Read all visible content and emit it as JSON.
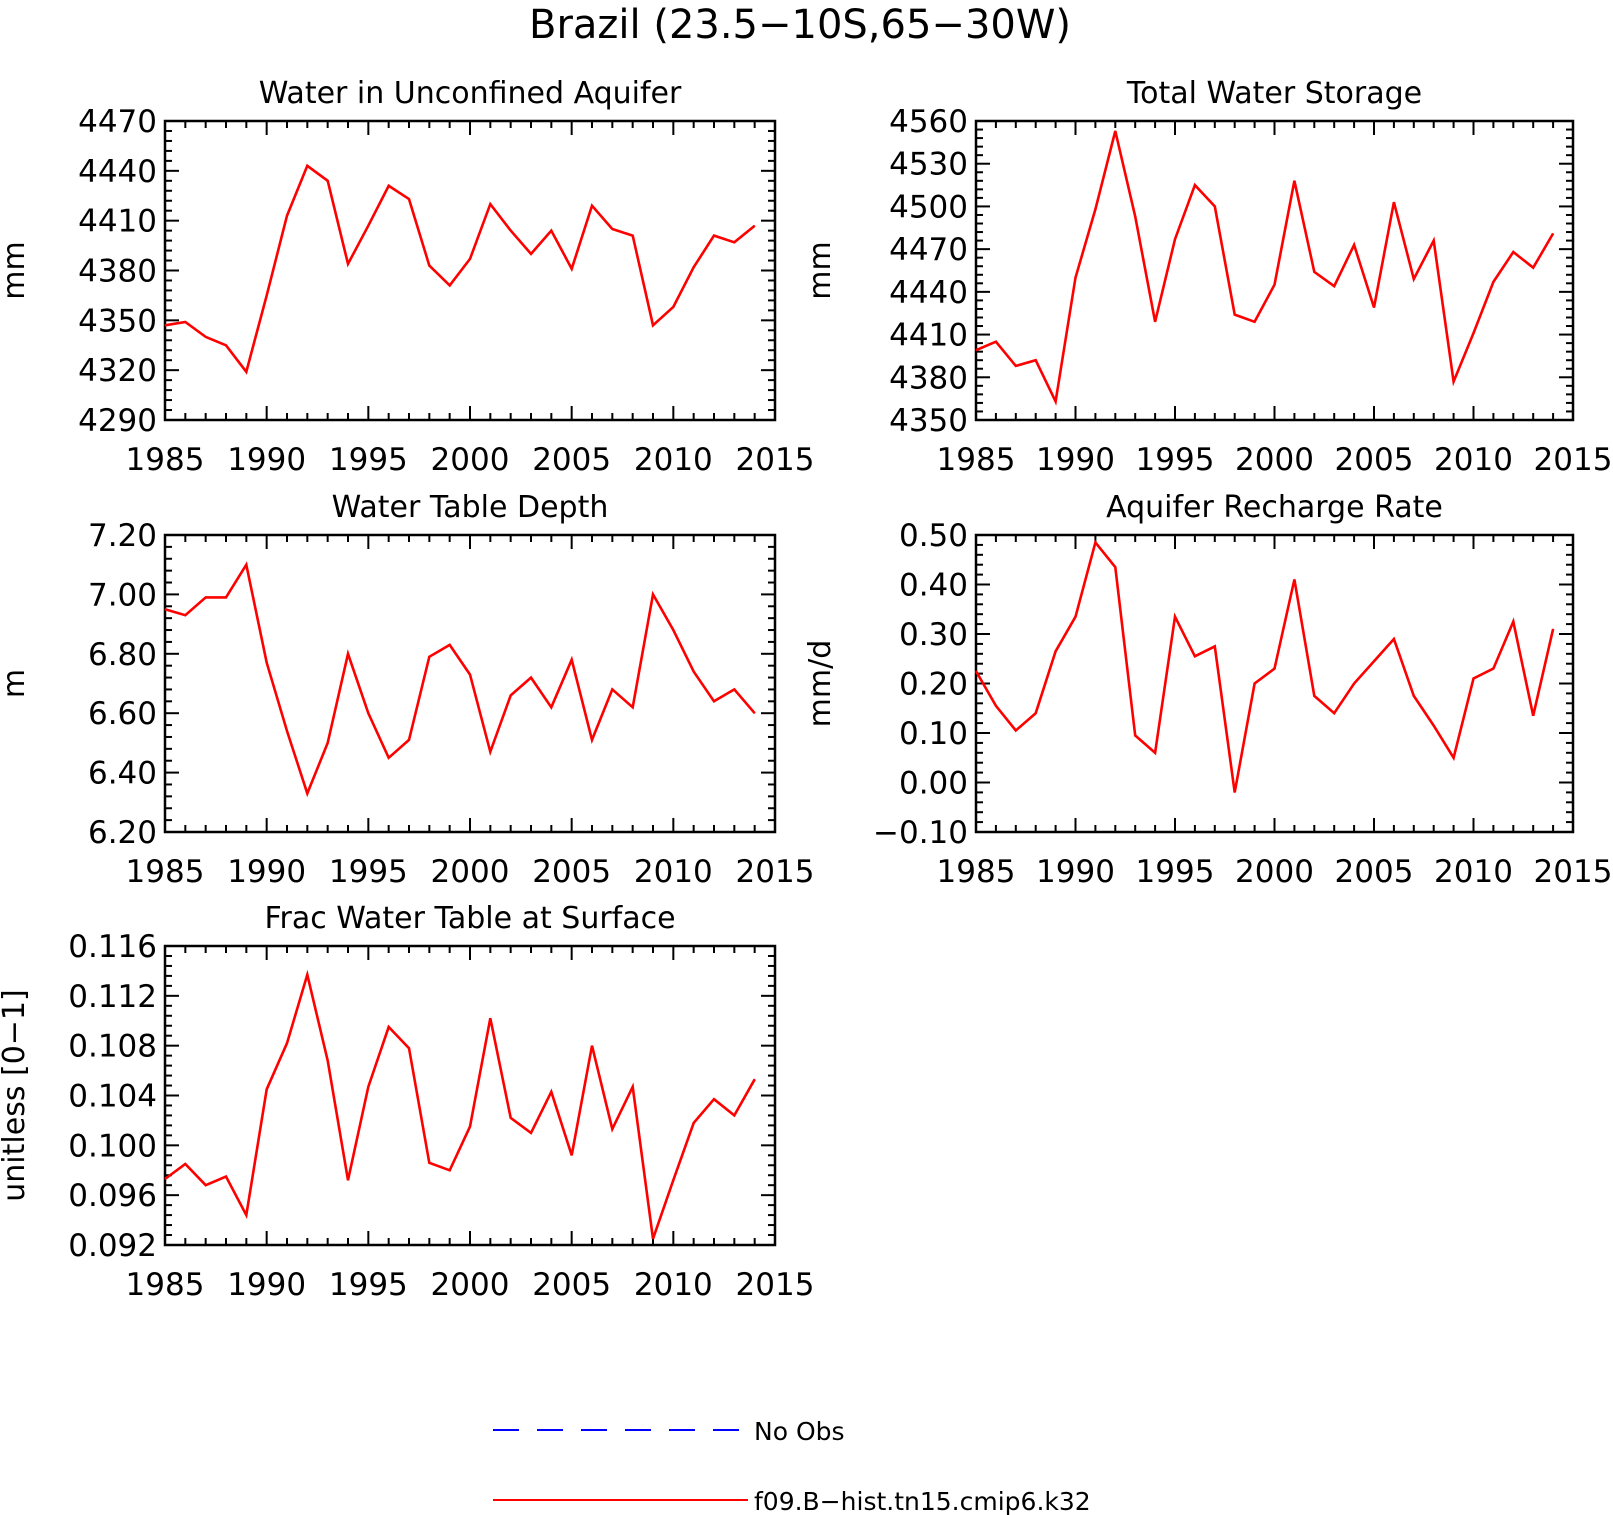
{
  "figure": {
    "title": "Brazil (23.5−10S,65−30W)"
  },
  "legend": {
    "placement": "bottom-center",
    "entries": [
      {
        "name": "No Obs",
        "color": "#0000ff",
        "dashed": true
      },
      {
        "name": "f09.B−hist.tn15.cmip6.k32",
        "color": "#ff0000",
        "dashed": false
      }
    ]
  },
  "chart_data": [
    {
      "type": "line",
      "title": "Water in Unconfined Aquifer",
      "ylabel": "mm",
      "xlim": [
        1985,
        2015
      ],
      "ylim": [
        4290,
        4470
      ],
      "xticks": [
        "1985",
        "1990",
        "1995",
        "2000",
        "2005",
        "2010",
        "2015"
      ],
      "yticks": [
        "4290",
        "4320",
        "4350",
        "4380",
        "4410",
        "4440",
        "4470"
      ],
      "grid": false,
      "x": [
        1985,
        1986,
        1987,
        1988,
        1989,
        1990,
        1991,
        1992,
        1993,
        1994,
        1995,
        1996,
        1997,
        1998,
        1999,
        2000,
        2001,
        2002,
        2003,
        2004,
        2005,
        2006,
        2007,
        2008,
        2009,
        2010,
        2011,
        2012,
        2013,
        2014
      ],
      "series": [
        {
          "name": "f09.B−hist.tn15.cmip6.k32",
          "color": "#ff0000",
          "values": [
            4347,
            4349,
            4340,
            4335,
            4319,
            4365,
            4413,
            4443,
            4434,
            4384,
            4407,
            4431,
            4423,
            4383,
            4371,
            4387,
            4420,
            4404,
            4390,
            4404,
            4381,
            4419,
            4405,
            4401,
            4347,
            4358,
            4382,
            4401,
            4397,
            4407
          ]
        }
      ]
    },
    {
      "type": "line",
      "title": "Total Water Storage",
      "ylabel": "mm",
      "xlim": [
        1985,
        2015
      ],
      "ylim": [
        4350,
        4560
      ],
      "xticks": [
        "1985",
        "1990",
        "1995",
        "2000",
        "2005",
        "2010",
        "2015"
      ],
      "yticks": [
        "4350",
        "4380",
        "4410",
        "4440",
        "4470",
        "4500",
        "4530",
        "4560"
      ],
      "grid": false,
      "x": [
        1985,
        1986,
        1987,
        1988,
        1989,
        1990,
        1991,
        1992,
        1993,
        1994,
        1995,
        1996,
        1997,
        1998,
        1999,
        2000,
        2001,
        2002,
        2003,
        2004,
        2005,
        2006,
        2007,
        2008,
        2009,
        2010,
        2011,
        2012,
        2013,
        2014
      ],
      "series": [
        {
          "name": "f09.B−hist.tn15.cmip6.k32",
          "color": "#ff0000",
          "values": [
            4399,
            4405,
            4388,
            4392,
            4363,
            4450,
            4498,
            4553,
            4493,
            4419,
            4477,
            4515,
            4500,
            4424,
            4419,
            4445,
            4518,
            4454,
            4444,
            4473,
            4429,
            4503,
            4449,
            4476,
            4377,
            4411,
            4447,
            4468,
            4457,
            4481
          ]
        }
      ]
    },
    {
      "type": "line",
      "title": "Water Table Depth",
      "ylabel": "m",
      "xlim": [
        1985,
        2015
      ],
      "ylim": [
        6.2,
        7.2
      ],
      "xticks": [
        "1985",
        "1990",
        "1995",
        "2000",
        "2005",
        "2010",
        "2015"
      ],
      "yticks": [
        "6.20",
        "6.40",
        "6.60",
        "6.80",
        "7.00",
        "7.20"
      ],
      "grid": false,
      "x": [
        1985,
        1986,
        1987,
        1988,
        1989,
        1990,
        1991,
        1992,
        1993,
        1994,
        1995,
        1996,
        1997,
        1998,
        1999,
        2000,
        2001,
        2002,
        2003,
        2004,
        2005,
        2006,
        2007,
        2008,
        2009,
        2010,
        2011,
        2012,
        2013,
        2014
      ],
      "series": [
        {
          "name": "f09.B−hist.tn15.cmip6.k32",
          "color": "#ff0000",
          "values": [
            6.95,
            6.93,
            6.99,
            6.99,
            7.1,
            6.77,
            6.54,
            6.33,
            6.5,
            6.8,
            6.6,
            6.45,
            6.51,
            6.79,
            6.83,
            6.73,
            6.47,
            6.66,
            6.72,
            6.62,
            6.78,
            6.51,
            6.68,
            6.62,
            7.0,
            6.88,
            6.74,
            6.64,
            6.68,
            6.6
          ]
        }
      ]
    },
    {
      "type": "line",
      "title": "Aquifer Recharge Rate",
      "ylabel": "mm/d",
      "xlim": [
        1985,
        2015
      ],
      "ylim": [
        -0.1,
        0.5
      ],
      "xticks": [
        "1985",
        "1990",
        "1995",
        "2000",
        "2005",
        "2010",
        "2015"
      ],
      "yticks": [
        "−0.10",
        "0.00",
        "0.10",
        "0.20",
        "0.30",
        "0.40",
        "0.50"
      ],
      "grid": false,
      "x": [
        1985,
        1986,
        1987,
        1988,
        1989,
        1990,
        1991,
        1992,
        1993,
        1994,
        1995,
        1996,
        1997,
        1998,
        1999,
        2000,
        2001,
        2002,
        2003,
        2004,
        2005,
        2006,
        2007,
        2008,
        2009,
        2010,
        2011,
        2012,
        2013,
        2014
      ],
      "series": [
        {
          "name": "f09.B−hist.tn15.cmip6.k32",
          "color": "#ff0000",
          "values": [
            0.225,
            0.155,
            0.105,
            0.14,
            0.265,
            0.335,
            0.485,
            0.435,
            0.095,
            0.06,
            0.335,
            0.255,
            0.275,
            -0.02,
            0.2,
            0.23,
            0.41,
            0.175,
            0.14,
            0.2,
            0.245,
            0.29,
            0.175,
            0.115,
            0.05,
            0.21,
            0.23,
            0.325,
            0.135,
            0.31
          ]
        }
      ]
    },
    {
      "type": "line",
      "title": "Frac Water Table at Surface",
      "ylabel": "unitless [0−1]",
      "xlim": [
        1985,
        2015
      ],
      "ylim": [
        0.092,
        0.116
      ],
      "xticks": [
        "1985",
        "1990",
        "1995",
        "2000",
        "2005",
        "2010",
        "2015"
      ],
      "yticks": [
        "0.092",
        "0.096",
        "0.100",
        "0.104",
        "0.108",
        "0.112",
        "0.116"
      ],
      "grid": false,
      "x": [
        1985,
        1986,
        1987,
        1988,
        1989,
        1990,
        1991,
        1992,
        1993,
        1994,
        1995,
        1996,
        1997,
        1998,
        1999,
        2000,
        2001,
        2002,
        2003,
        2004,
        2005,
        2006,
        2007,
        2008,
        2009,
        2010,
        2011,
        2012,
        2013,
        2014
      ],
      "series": [
        {
          "name": "f09.B−hist.tn15.cmip6.k32",
          "color": "#ff0000",
          "values": [
            0.0973,
            0.0985,
            0.0968,
            0.0975,
            0.0944,
            0.1045,
            0.1082,
            0.1137,
            0.1068,
            0.0972,
            0.1047,
            0.1095,
            0.1078,
            0.0986,
            0.098,
            0.1015,
            0.1102,
            0.1022,
            0.101,
            0.1043,
            0.0992,
            0.108,
            0.1013,
            0.1047,
            0.0925,
            0.0972,
            0.1018,
            0.1037,
            0.1024,
            0.1053
          ]
        }
      ]
    }
  ]
}
